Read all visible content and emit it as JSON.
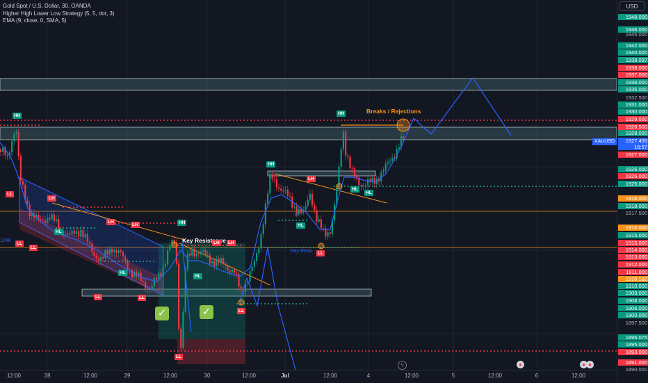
{
  "legend": {
    "symbol": "Gold Spot / U.S. Dollar, 30, OANDA",
    "indicator1": "Higher High Lower Low Strategy (5, 5, dot, 3)",
    "indicator2": "EMA (9, close, 0, SMA, 5)"
  },
  "currency": "USD",
  "ticker": {
    "name": "XAUUSD",
    "price": "1927.455",
    "countdown": "16:57"
  },
  "annotations": {
    "breaks": "Breaks / Rejections",
    "key_resistance": "Key Resistance",
    "key_resistance_small": "Key Resis",
    "partial_left": "1248",
    "bos": "B"
  },
  "swing_labels": {
    "hh": "HH",
    "lh": "LH",
    "hl": "HL",
    "ll": "LL"
  },
  "price_axis": {
    "plain": [
      "1945.000",
      "1932.500",
      "1917.500",
      "1897.500",
      "1890.000"
    ],
    "green": [
      "1948.000",
      "1946.000",
      "1942.000",
      "1940.000",
      "1938.097",
      "1936.000",
      "1935.000",
      "1931.000",
      "1930.000",
      "1928.000",
      "1926.000",
      "1925.000",
      "1918.000",
      "1916.000",
      "1915.000",
      "1910.000",
      "1909.000",
      "1908.000",
      "1906.000",
      "1900.000",
      "1895.075",
      "1895.000"
    ],
    "red": [
      "1938.000",
      "1937.000",
      "1929.000",
      "1928.500",
      "1927.000",
      "1926.000",
      "1915.000",
      "1914.000",
      "1913.000",
      "1912.000",
      "1911.000",
      "1893.000",
      "1891.000"
    ],
    "highlight": [
      "1918.000",
      "1916.000",
      "1910.182"
    ]
  },
  "time_axis": [
    "12:00",
    "28",
    "12:00",
    "29",
    "12:00",
    "30",
    "12:00",
    "Jul",
    "12:00",
    "4",
    "12:00",
    "5",
    "12:00",
    "6",
    "12:00"
  ],
  "colors": {
    "bg": "#131722",
    "up": "#089981",
    "down": "#f23645",
    "ema": "#2962ff",
    "zone": "#4a6a73",
    "orange": "#f7931a",
    "dotted_red": "#f23645",
    "dotted_green": "#22ab94"
  },
  "icons": [
    "lightning-icon",
    "flag-icon",
    "flag-icon"
  ]
}
